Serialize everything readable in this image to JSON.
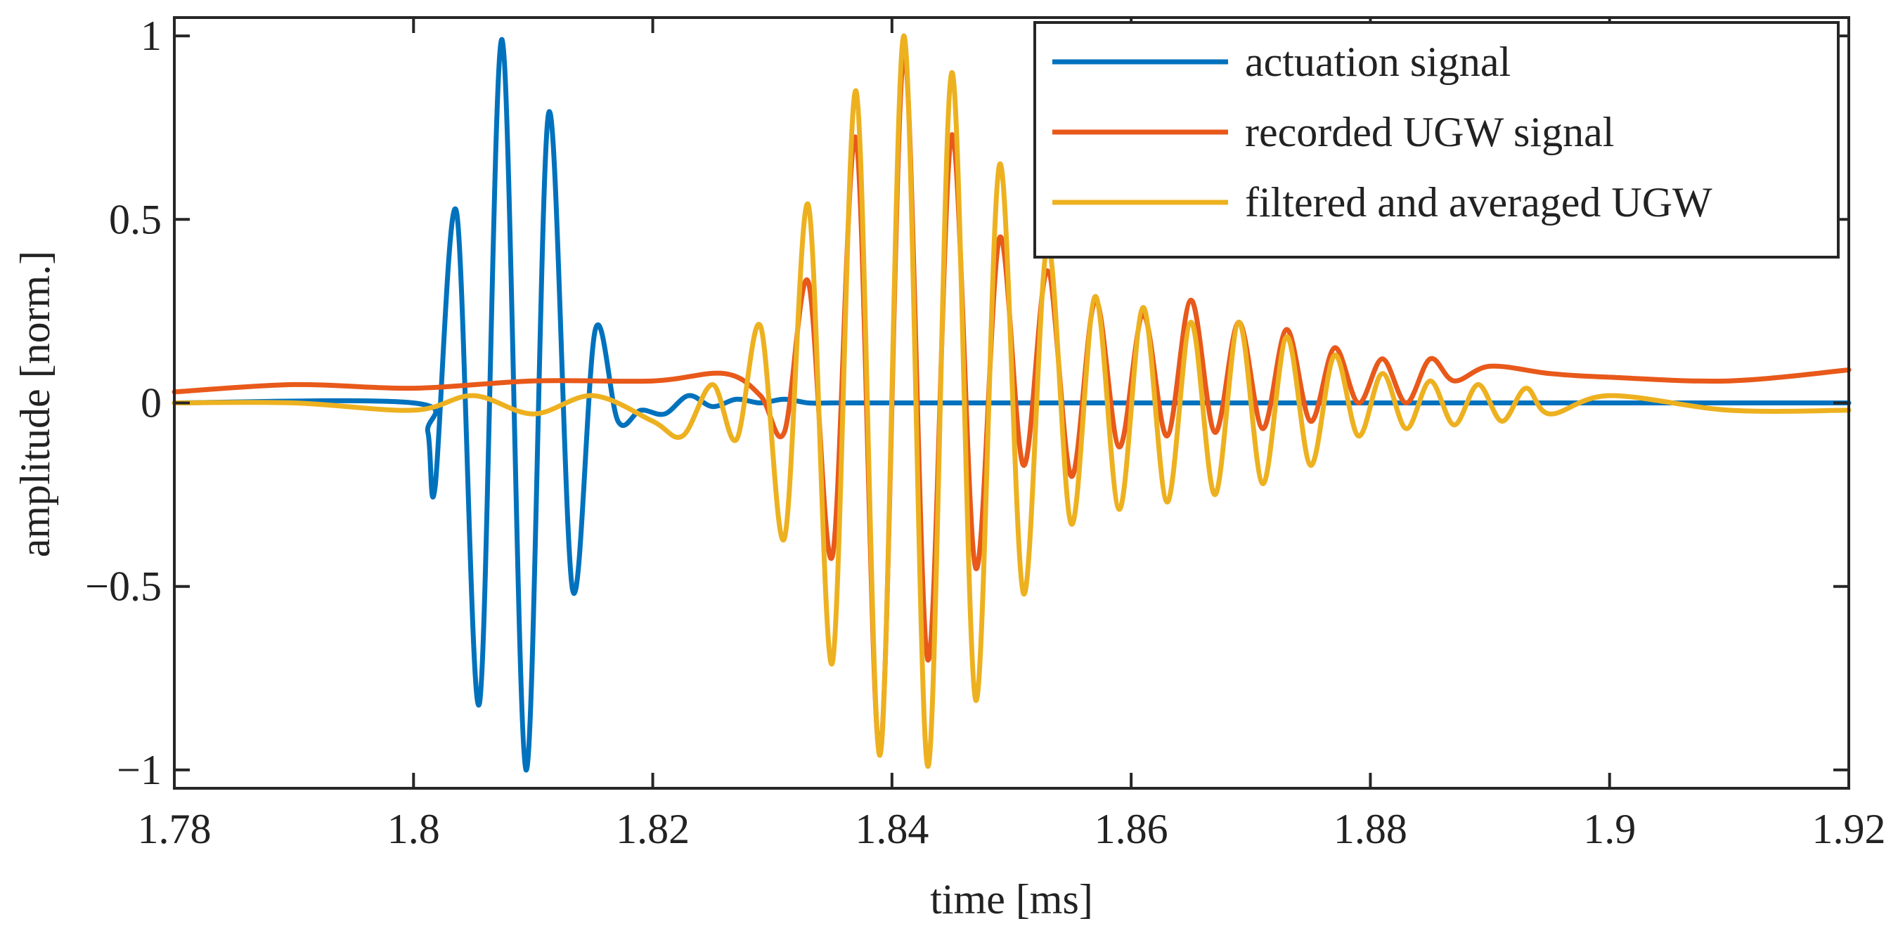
{
  "chart_data": {
    "type": "line",
    "title": "",
    "xlabel": "time [ms]",
    "ylabel": "amplitude [norm.]",
    "xlim": [
      1.78,
      1.92
    ],
    "ylim": [
      -1.05,
      1.05
    ],
    "grid": false,
    "legend_position": "top-right",
    "xticks": [
      1.78,
      1.8,
      1.82,
      1.84,
      1.86,
      1.88,
      1.9,
      1.92
    ],
    "xtick_labels": [
      "1.78",
      "1.8",
      "1.82",
      "1.84",
      "1.86",
      "1.88",
      "1.9",
      "1.92"
    ],
    "yticks": [
      -1,
      -0.5,
      0,
      0.5,
      1
    ],
    "ytick_labels": [
      "−1",
      "−0.5",
      "0",
      "0.5",
      "1"
    ],
    "series": [
      {
        "name": "actuation signal",
        "color": "#0072BD",
        "x": [
          1.78,
          1.8,
          1.8012,
          1.8018,
          1.8036,
          1.8055,
          1.8074,
          1.8094,
          1.8113,
          1.8133,
          1.8152,
          1.8171,
          1.819,
          1.821,
          1.823,
          1.825,
          1.827,
          1.829,
          1.831,
          1.833,
          1.835,
          1.84,
          1.86,
          1.88,
          1.9,
          1.92
        ],
        "values": [
          0.0,
          0.0,
          -0.08,
          -0.23,
          0.52,
          -0.82,
          0.99,
          -1.0,
          0.79,
          -0.51,
          0.2,
          -0.05,
          -0.02,
          -0.03,
          0.02,
          -0.01,
          0.01,
          0.0,
          0.01,
          0.0,
          0.0,
          0.0,
          0.0,
          0.0,
          0.0,
          0.0
        ]
      },
      {
        "name": "recorded UGW signal",
        "color": "#E8591A",
        "x": [
          1.78,
          1.79,
          1.8,
          1.81,
          1.82,
          1.826,
          1.829,
          1.831,
          1.833,
          1.835,
          1.837,
          1.839,
          1.841,
          1.843,
          1.845,
          1.847,
          1.849,
          1.851,
          1.853,
          1.855,
          1.857,
          1.859,
          1.861,
          1.863,
          1.865,
          1.867,
          1.869,
          1.871,
          1.873,
          1.875,
          1.877,
          1.879,
          1.881,
          1.883,
          1.885,
          1.887,
          1.89,
          1.895,
          1.9,
          1.91,
          1.92
        ],
        "values": [
          0.03,
          0.05,
          0.04,
          0.06,
          0.06,
          0.08,
          0.02,
          -0.08,
          0.33,
          -0.42,
          0.72,
          -0.95,
          0.95,
          -0.7,
          0.73,
          -0.45,
          0.45,
          -0.17,
          0.36,
          -0.2,
          0.28,
          -0.12,
          0.24,
          -0.09,
          0.28,
          -0.08,
          0.22,
          -0.07,
          0.2,
          -0.05,
          0.15,
          0.0,
          0.12,
          0.0,
          0.12,
          0.06,
          0.1,
          0.08,
          0.07,
          0.06,
          0.09
        ]
      },
      {
        "name": "filtered and averaged UGW",
        "color": "#EDB120",
        "x": [
          1.78,
          1.79,
          1.8,
          1.805,
          1.81,
          1.815,
          1.82,
          1.8225,
          1.825,
          1.827,
          1.829,
          1.831,
          1.833,
          1.835,
          1.837,
          1.839,
          1.841,
          1.843,
          1.845,
          1.847,
          1.849,
          1.851,
          1.853,
          1.855,
          1.857,
          1.859,
          1.861,
          1.863,
          1.865,
          1.867,
          1.869,
          1.871,
          1.873,
          1.875,
          1.877,
          1.879,
          1.881,
          1.883,
          1.885,
          1.887,
          1.889,
          1.891,
          1.893,
          1.895,
          1.9,
          1.91,
          1.92
        ],
        "values": [
          0.0,
          0.0,
          -0.02,
          0.02,
          -0.03,
          0.02,
          -0.05,
          -0.09,
          0.05,
          -0.1,
          0.21,
          -0.37,
          0.54,
          -0.71,
          0.85,
          -0.96,
          1.0,
          -0.99,
          0.9,
          -0.81,
          0.65,
          -0.52,
          0.43,
          -0.33,
          0.29,
          -0.29,
          0.26,
          -0.27,
          0.22,
          -0.25,
          0.22,
          -0.22,
          0.18,
          -0.17,
          0.13,
          -0.09,
          0.08,
          -0.07,
          0.06,
          -0.06,
          0.05,
          -0.05,
          0.04,
          -0.03,
          0.02,
          -0.02,
          -0.02
        ]
      }
    ]
  }
}
